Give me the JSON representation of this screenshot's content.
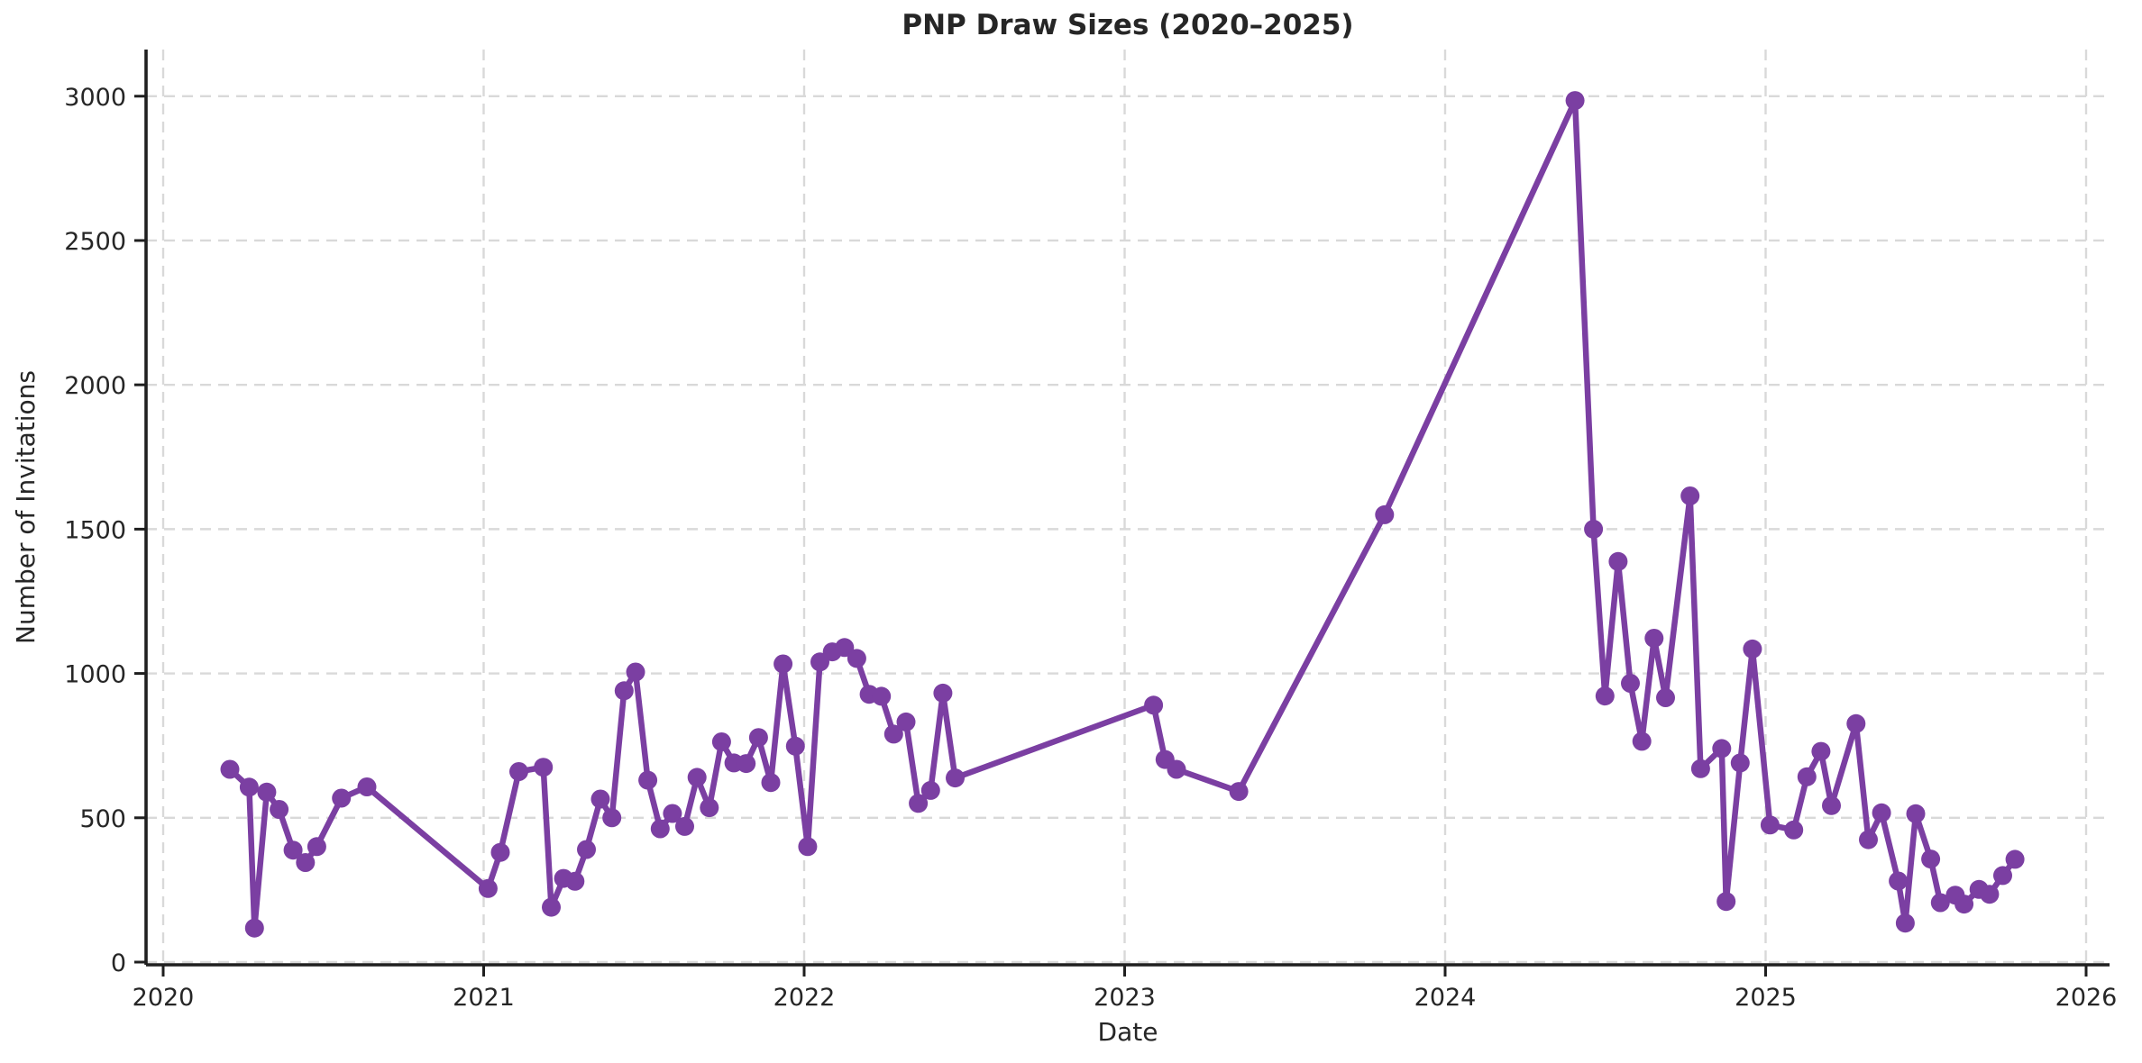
{
  "chart": {
    "background_color": "#ffffff",
    "line_color": "#7b3fa2",
    "grid_color": "#d9d9d9",
    "axis_color": "#1f1f1f",
    "text_color": "#262626"
  },
  "chart_data": {
    "type": "line",
    "title": "PNP Draw Sizes (2020–2025)",
    "xlabel": "Date",
    "ylabel": "Number of Invitations",
    "legend": false,
    "grid": "dashed both axes",
    "x_ticks": [
      2020,
      2021,
      2022,
      2023,
      2024,
      2025,
      2026
    ],
    "y_ticks": [
      0,
      500,
      1000,
      1500,
      2000,
      2500,
      3000
    ],
    "xlim_years": [
      2019.95,
      2026.07
    ],
    "ylim": [
      -10,
      3160
    ],
    "marker": "circle",
    "series": [
      {
        "name": "PNP draw size",
        "color": "#7b3fa2",
        "points": [
          [
            "2020-03-18",
            668
          ],
          [
            "2020-04-09",
            606
          ],
          [
            "2020-04-15",
            118
          ],
          [
            "2020-04-29",
            589
          ],
          [
            "2020-05-13",
            529
          ],
          [
            "2020-05-29",
            388
          ],
          [
            "2020-06-12",
            345
          ],
          [
            "2020-06-25",
            400
          ],
          [
            "2020-07-23",
            568
          ],
          [
            "2020-08-21",
            607
          ],
          [
            "2021-01-06",
            255
          ],
          [
            "2021-01-20",
            380
          ],
          [
            "2021-02-10",
            660
          ],
          [
            "2021-03-10",
            675
          ],
          [
            "2021-03-19",
            190
          ],
          [
            "2021-04-02",
            290
          ],
          [
            "2021-04-15",
            280
          ],
          [
            "2021-04-28",
            390
          ],
          [
            "2021-05-14",
            565
          ],
          [
            "2021-05-27",
            500
          ],
          [
            "2021-06-10",
            940
          ],
          [
            "2021-06-23",
            1005
          ],
          [
            "2021-07-07",
            630
          ],
          [
            "2021-07-21",
            462
          ],
          [
            "2021-08-04",
            515
          ],
          [
            "2021-08-18",
            470
          ],
          [
            "2021-09-01",
            640
          ],
          [
            "2021-09-15",
            535
          ],
          [
            "2021-09-29",
            763
          ],
          [
            "2021-10-13",
            690
          ],
          [
            "2021-10-27",
            688
          ],
          [
            "2021-11-10",
            778
          ],
          [
            "2021-11-24",
            622
          ],
          [
            "2021-12-08",
            1033
          ],
          [
            "2021-12-22",
            748
          ],
          [
            "2022-01-05",
            400
          ],
          [
            "2022-01-19",
            1040
          ],
          [
            "2022-02-02",
            1075
          ],
          [
            "2022-02-16",
            1090
          ],
          [
            "2022-03-02",
            1052
          ],
          [
            "2022-03-16",
            928
          ],
          [
            "2022-03-30",
            921
          ],
          [
            "2022-04-13",
            790
          ],
          [
            "2022-04-27",
            832
          ],
          [
            "2022-05-11",
            550
          ],
          [
            "2022-05-25",
            595
          ],
          [
            "2022-06-08",
            932
          ],
          [
            "2022-06-22",
            638
          ],
          [
            "2023-02-03",
            890
          ],
          [
            "2023-02-16",
            702
          ],
          [
            "2023-03-01",
            668
          ],
          [
            "2023-05-11",
            591
          ],
          [
            "2023-10-24",
            1550
          ],
          [
            "2024-05-29",
            2985
          ],
          [
            "2024-06-19",
            1500
          ],
          [
            "2024-07-02",
            922
          ],
          [
            "2024-07-17",
            1388
          ],
          [
            "2024-07-31",
            966
          ],
          [
            "2024-08-13",
            765
          ],
          [
            "2024-08-27",
            1122
          ],
          [
            "2024-09-09",
            916
          ],
          [
            "2024-10-07",
            1615
          ],
          [
            "2024-10-19",
            670
          ],
          [
            "2024-11-12",
            740
          ],
          [
            "2024-11-17",
            210
          ],
          [
            "2024-12-03",
            690
          ],
          [
            "2024-12-17",
            1085
          ],
          [
            "2025-01-06",
            475
          ],
          [
            "2025-02-02",
            458
          ],
          [
            "2025-02-17",
            642
          ],
          [
            "2025-03-05",
            730
          ],
          [
            "2025-03-17",
            542
          ],
          [
            "2025-04-14",
            826
          ],
          [
            "2025-04-28",
            424
          ],
          [
            "2025-05-13",
            517
          ],
          [
            "2025-06-01",
            281
          ],
          [
            "2025-06-09",
            135
          ],
          [
            "2025-06-21",
            514
          ],
          [
            "2025-07-08",
            357
          ],
          [
            "2025-07-19",
            206
          ],
          [
            "2025-08-05",
            232
          ],
          [
            "2025-08-15",
            201
          ],
          [
            "2025-09-01",
            252
          ],
          [
            "2025-09-13",
            235
          ],
          [
            "2025-09-28",
            300
          ],
          [
            "2025-10-12",
            356
          ]
        ]
      }
    ]
  }
}
